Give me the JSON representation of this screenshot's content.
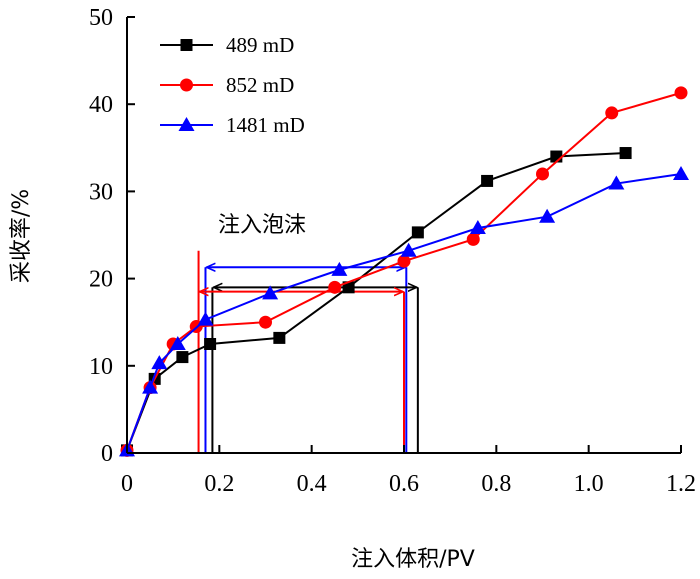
{
  "chart_data": {
    "type": "line",
    "xlabel": "注入体积/PV",
    "ylabel": "采收率/%",
    "xlim": [
      0,
      1.2
    ],
    "ylim": [
      0,
      50
    ],
    "x_ticks": [
      0,
      0.2,
      0.4,
      0.6,
      0.8,
      1.0,
      1.2
    ],
    "x_tick_labels": [
      "0",
      "0.2",
      "0.4",
      "0.6",
      "0.8",
      "1.0",
      "1.2"
    ],
    "y_ticks": [
      0,
      10,
      20,
      30,
      40,
      50
    ],
    "y_tick_labels": [
      "0",
      "10",
      "20",
      "30",
      "40",
      "50"
    ],
    "legend_position": "top-left",
    "series": [
      {
        "name": "489 mD",
        "color": "#000000",
        "marker": "square",
        "x": [
          0,
          0.06,
          0.12,
          0.18,
          0.33,
          0.48,
          0.63,
          0.78,
          0.93,
          1.08
        ],
        "y": [
          0.3,
          8.5,
          11.0,
          12.5,
          13.2,
          19.0,
          25.3,
          31.2,
          34.0,
          34.4
        ]
      },
      {
        "name": "852 mD",
        "color": "#ff0000",
        "marker": "circle",
        "x": [
          0,
          0.05,
          0.1,
          0.15,
          0.3,
          0.45,
          0.6,
          0.75,
          0.9,
          1.05,
          1.2
        ],
        "y": [
          0.3,
          7.5,
          12.5,
          14.5,
          15.0,
          19.0,
          22.0,
          24.5,
          32.0,
          39.0,
          41.3
        ]
      },
      {
        "name": "1481 mD",
        "color": "#0000ff",
        "marker": "triangle",
        "x": [
          0,
          0.05,
          0.07,
          0.11,
          0.17,
          0.31,
          0.46,
          0.61,
          0.76,
          0.91,
          1.06,
          1.2
        ],
        "y": [
          0.3,
          7.5,
          10.3,
          12.5,
          15.3,
          18.3,
          21.0,
          23.2,
          25.8,
          27.1,
          30.9,
          32.0
        ]
      }
    ],
    "annotation": {
      "text": "注入泡沫",
      "ranges": [
        {
          "series": "1481 mD",
          "color": "#0000ff",
          "x_start": 0.17,
          "x_end": 0.605,
          "y": 21.3,
          "line_top": 21.3,
          "line_bottom": 0
        },
        {
          "series": "489 mD",
          "color": "#000000",
          "x_start": 0.185,
          "x_end": 0.63,
          "y": 19.0,
          "line_top": 19.0,
          "line_bottom": 0
        },
        {
          "series": "852 mD",
          "color": "#ff0000",
          "x_start": 0.155,
          "x_end": 0.6,
          "y": 18.5,
          "line_top": 23.2,
          "line_bottom": 0
        }
      ]
    }
  }
}
